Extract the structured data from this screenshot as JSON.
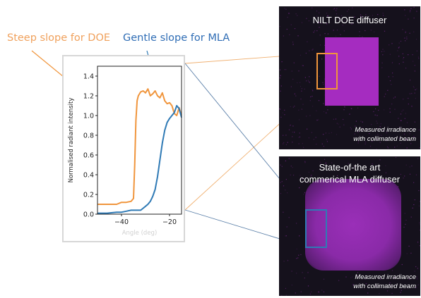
{
  "annotations": {
    "doe_callout": "Steep slope for DOE",
    "mla_callout": "Gentle slope for MLA"
  },
  "panels": {
    "doe": {
      "title": "NILT DOE diffuser",
      "caption_line1": "Measured irradiance",
      "caption_line2": "with collimated beam"
    },
    "mla": {
      "title_line1": "State-of-the art",
      "title_line2": "commerical MLA diffuser",
      "caption_line1": "Measured irradiance",
      "caption_line2": "with collimated beam"
    }
  },
  "colors": {
    "doe": "#f0953c",
    "mla": "#2f7ab5",
    "doe_callout_text": "#f0a15c",
    "mla_callout_text": "#2f6db5",
    "speckle": "#b030c8",
    "panel_bg": "#15111c"
  },
  "chart_data": {
    "type": "line",
    "xlabel": "Angle (deg)",
    "ylabel": "Normalised radiant intensity",
    "xlim": [
      -50,
      -15
    ],
    "ylim": [
      0,
      1.5
    ],
    "xticks": [
      -40,
      -20
    ],
    "yticks": [
      0.0,
      0.2,
      0.4,
      0.6,
      0.8,
      1.0,
      1.2,
      1.4
    ],
    "grid": false,
    "series": [
      {
        "key": "doe",
        "x": [
          -50,
          -48,
          -46,
          -44,
          -42,
          -40,
          -38,
          -36,
          -35,
          -34.5,
          -34,
          -33.5,
          -33,
          -32,
          -31,
          -30,
          -29,
          -28,
          -27,
          -26,
          -25,
          -24,
          -23,
          -22,
          -21,
          -20,
          -19,
          -18,
          -17,
          -16,
          -15
        ],
        "y": [
          0.1,
          0.1,
          0.1,
          0.1,
          0.1,
          0.12,
          0.12,
          0.13,
          0.16,
          0.5,
          0.95,
          1.15,
          1.2,
          1.24,
          1.25,
          1.23,
          1.27,
          1.2,
          1.22,
          1.25,
          1.2,
          1.18,
          1.23,
          1.15,
          1.12,
          1.13,
          1.1,
          1.02,
          1.0,
          1.08,
          1.0
        ]
      },
      {
        "key": "mla",
        "x": [
          -50,
          -46,
          -42,
          -40,
          -38,
          -36,
          -34,
          -32,
          -31,
          -30,
          -29,
          -28,
          -27,
          -26,
          -25,
          -24,
          -23,
          -22,
          -21,
          -20,
          -19,
          -18,
          -17,
          -16,
          -15
        ],
        "y": [
          0.01,
          0.01,
          0.02,
          0.02,
          0.03,
          0.04,
          0.04,
          0.04,
          0.06,
          0.08,
          0.1,
          0.13,
          0.18,
          0.25,
          0.38,
          0.55,
          0.72,
          0.85,
          0.93,
          0.97,
          1.0,
          1.03,
          1.1,
          1.07,
          0.98
        ]
      }
    ]
  }
}
